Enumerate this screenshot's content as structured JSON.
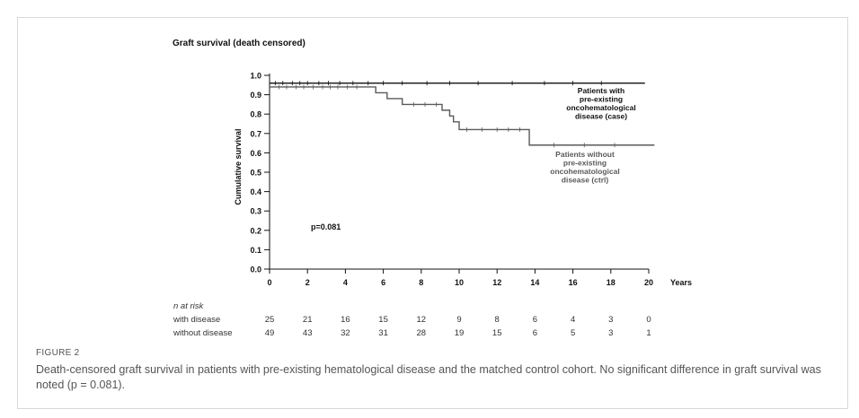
{
  "chart_data": {
    "type": "line",
    "subtype": "kaplan-meier",
    "title": "Graft survival (death censored)",
    "xlabel": "Years",
    "ylabel": "Cumulative survival",
    "xlim": [
      0,
      20
    ],
    "ylim": [
      0.0,
      1.0
    ],
    "xticks": [
      "0",
      "2",
      "4",
      "6",
      "8",
      "10",
      "12",
      "14",
      "16",
      "18",
      "20"
    ],
    "yticks": [
      "0.0",
      "0.1",
      "0.2",
      "0.3",
      "0.4",
      "0.5",
      "0.6",
      "0.7",
      "0.8",
      "0.9",
      "1.0"
    ],
    "annotation": "p=0.081",
    "series": [
      {
        "name": "Patients with pre-existing oncohematological disease (case)",
        "label_lines": [
          "Patients with",
          "pre-existing",
          "oncohematological",
          "disease (case)"
        ],
        "color": "#111111",
        "steps": [
          [
            0,
            0.96
          ],
          [
            19.8,
            0.96
          ]
        ],
        "censor_x": [
          0.3,
          0.7,
          1.2,
          1.6,
          2.0,
          2.6,
          3.1,
          3.7,
          4.4,
          5.2,
          6.0,
          7.0,
          8.3,
          9.5,
          11.0,
          12.8,
          14.5,
          16.0,
          17.5
        ]
      },
      {
        "name": "Patients without pre-existing oncohematological disease (ctrl)",
        "label_lines": [
          "Patients without",
          "pre-existing",
          "oncohematological",
          "disease (ctrl)"
        ],
        "color": "#5a5a5a",
        "steps": [
          [
            0,
            0.94
          ],
          [
            5.6,
            0.91
          ],
          [
            6.2,
            0.88
          ],
          [
            7.0,
            0.85
          ],
          [
            9.1,
            0.82
          ],
          [
            9.5,
            0.79
          ],
          [
            9.7,
            0.76
          ],
          [
            10.0,
            0.72
          ],
          [
            13.7,
            0.64
          ],
          [
            20.3,
            0.64
          ]
        ],
        "censor_x": [
          0.5,
          0.9,
          1.4,
          1.8,
          2.3,
          2.8,
          3.2,
          3.6,
          4.1,
          4.6,
          7.6,
          8.2,
          8.8,
          10.4,
          11.2,
          12.0,
          12.6,
          13.2,
          15.0,
          16.6,
          18.2
        ]
      }
    ]
  },
  "risk_table": {
    "header": "n at risk",
    "times": [
      0,
      2,
      4,
      6,
      8,
      10,
      12,
      14,
      16,
      18,
      20
    ],
    "rows": [
      {
        "label": "with disease",
        "values": [
          "25",
          "21",
          "16",
          "15",
          "12",
          "9",
          "8",
          "6",
          "4",
          "3",
          "0"
        ]
      },
      {
        "label": "without disease",
        "values": [
          "49",
          "43",
          "32",
          "31",
          "28",
          "19",
          "15",
          "6",
          "5",
          "3",
          "1"
        ]
      }
    ]
  },
  "figure_label": "FIGURE 2",
  "caption": "Death-censored graft survival in patients with pre-existing hematological disease and the matched control cohort. No significant difference in graft survival was noted (p = 0.081)."
}
